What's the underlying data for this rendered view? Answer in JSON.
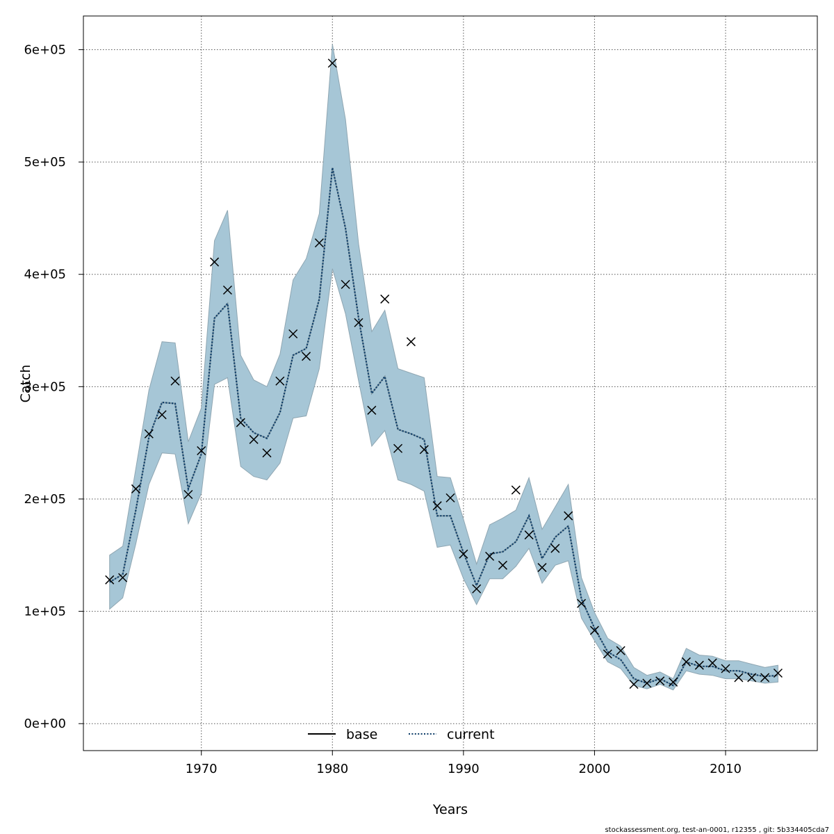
{
  "chart_data": {
    "type": "line",
    "title": "",
    "xlabel": "Years",
    "ylabel": "Catch",
    "xlim": [
      1961,
      2017
    ],
    "ylim": [
      -24000,
      630000
    ],
    "x_ticks": [
      1970,
      1980,
      1990,
      2000,
      2010
    ],
    "y_ticks": [
      0,
      100000,
      200000,
      300000,
      400000,
      500000,
      600000
    ],
    "y_tick_labels": [
      "0e+00",
      "1e+05",
      "2e+05",
      "3e+05",
      "4e+05",
      "5e+05",
      "6e+05"
    ],
    "grid": true,
    "legend_position": "bottom-center",
    "colors": {
      "band": "#a6c6d6",
      "band_edge": "#8fa6b2",
      "current": "#0a3a66",
      "base": "#000000",
      "grid": "#555555"
    },
    "x": [
      1963,
      1964,
      1965,
      1966,
      1967,
      1968,
      1969,
      1970,
      1971,
      1972,
      1973,
      1974,
      1975,
      1976,
      1977,
      1978,
      1979,
      1980,
      1981,
      1982,
      1983,
      1984,
      1985,
      1986,
      1987,
      1988,
      1989,
      1990,
      1991,
      1992,
      1993,
      1994,
      1995,
      1996,
      1997,
      1998,
      1999,
      2000,
      2001,
      2002,
      2003,
      2004,
      2005,
      2006,
      2007,
      2008,
      2009,
      2010,
      2011,
      2012,
      2013,
      2014
    ],
    "band": {
      "lower": [
        102000,
        112000,
        160000,
        213000,
        241000,
        240000,
        178000,
        205000,
        302000,
        308000,
        229000,
        220000,
        217000,
        232000,
        272000,
        274000,
        316000,
        405000,
        365000,
        305000,
        247000,
        261000,
        217000,
        213000,
        207000,
        157000,
        159000,
        129000,
        106000,
        129000,
        129000,
        140000,
        156000,
        125000,
        141000,
        145000,
        94000,
        74000,
        55000,
        49000,
        34000,
        31000,
        35000,
        30000,
        47000,
        44000,
        43000,
        40000,
        40000,
        38000,
        36000,
        37000
      ],
      "upper": [
        150000,
        158000,
        227000,
        297000,
        340000,
        339000,
        251000,
        281000,
        430000,
        457000,
        328000,
        306000,
        300000,
        329000,
        395000,
        414000,
        454000,
        605000,
        538000,
        427000,
        349000,
        368000,
        316000,
        312000,
        308000,
        220000,
        219000,
        182000,
        142000,
        177000,
        183000,
        190000,
        219000,
        173000,
        193000,
        213000,
        130000,
        99000,
        76000,
        69000,
        50000,
        43000,
        46000,
        40000,
        67000,
        61000,
        60000,
        56000,
        56000,
        53000,
        50000,
        52000
      ]
    },
    "series": [
      {
        "name": "base",
        "style": "solid",
        "values": [
          126000,
          133000,
          190000,
          255000,
          286000,
          285000,
          209000,
          240000,
          361000,
          374000,
          272000,
          259000,
          254000,
          277000,
          328000,
          334000,
          378000,
          495000,
          441000,
          361000,
          294000,
          309000,
          262000,
          258000,
          253000,
          185000,
          185000,
          152000,
          123000,
          151000,
          153000,
          162000,
          185000,
          147000,
          166000,
          176000,
          111000,
          85000,
          64000,
          57000,
          40000,
          36000,
          40000,
          34000,
          55000,
          51000,
          51000,
          47000,
          47000,
          44000,
          42000,
          43000
        ]
      },
      {
        "name": "current",
        "style": "dotted",
        "values": [
          126000,
          133000,
          190000,
          255000,
          286000,
          285000,
          209000,
          240000,
          361000,
          374000,
          272000,
          259000,
          254000,
          277000,
          328000,
          334000,
          378000,
          495000,
          441000,
          361000,
          294000,
          309000,
          262000,
          258000,
          253000,
          185000,
          185000,
          152000,
          123000,
          151000,
          153000,
          162000,
          185000,
          147000,
          166000,
          176000,
          111000,
          85000,
          64000,
          57000,
          40000,
          36000,
          40000,
          34000,
          55000,
          51000,
          51000,
          47000,
          47000,
          44000,
          42000,
          43000
        ]
      }
    ],
    "observations": {
      "marker": "x",
      "values": [
        128000,
        130000,
        209000,
        258000,
        275000,
        305000,
        204000,
        243000,
        411000,
        386000,
        268000,
        253000,
        241000,
        305000,
        347000,
        327000,
        428000,
        588000,
        391000,
        357000,
        279000,
        378000,
        245000,
        340000,
        244000,
        194000,
        201000,
        151000,
        120000,
        149000,
        141000,
        208000,
        168000,
        139000,
        156000,
        185000,
        107000,
        83000,
        62000,
        65000,
        35000,
        36000,
        38000,
        37000,
        55000,
        52000,
        54000,
        49000,
        41000,
        41000,
        41000,
        45000
      ]
    }
  },
  "footer": {
    "note": "stockassessment.org, test-an-0001, r12355 , git: 5b334405cda7"
  }
}
